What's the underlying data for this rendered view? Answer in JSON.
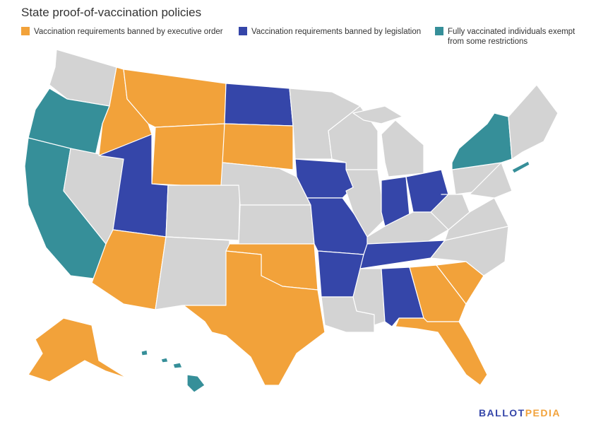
{
  "title": "State proof-of-vaccination policies",
  "legend": [
    {
      "label": "Vaccination requirements banned by executive order",
      "color": "#f2a23a"
    },
    {
      "label": "Vaccination requirements banned by legislation",
      "color": "#3546a9"
    },
    {
      "label": "Fully vaccinated individuals exempt from some restrictions",
      "color": "#368f99"
    }
  ],
  "logo": [
    "BALLOT",
    "PEDIA"
  ]
}
